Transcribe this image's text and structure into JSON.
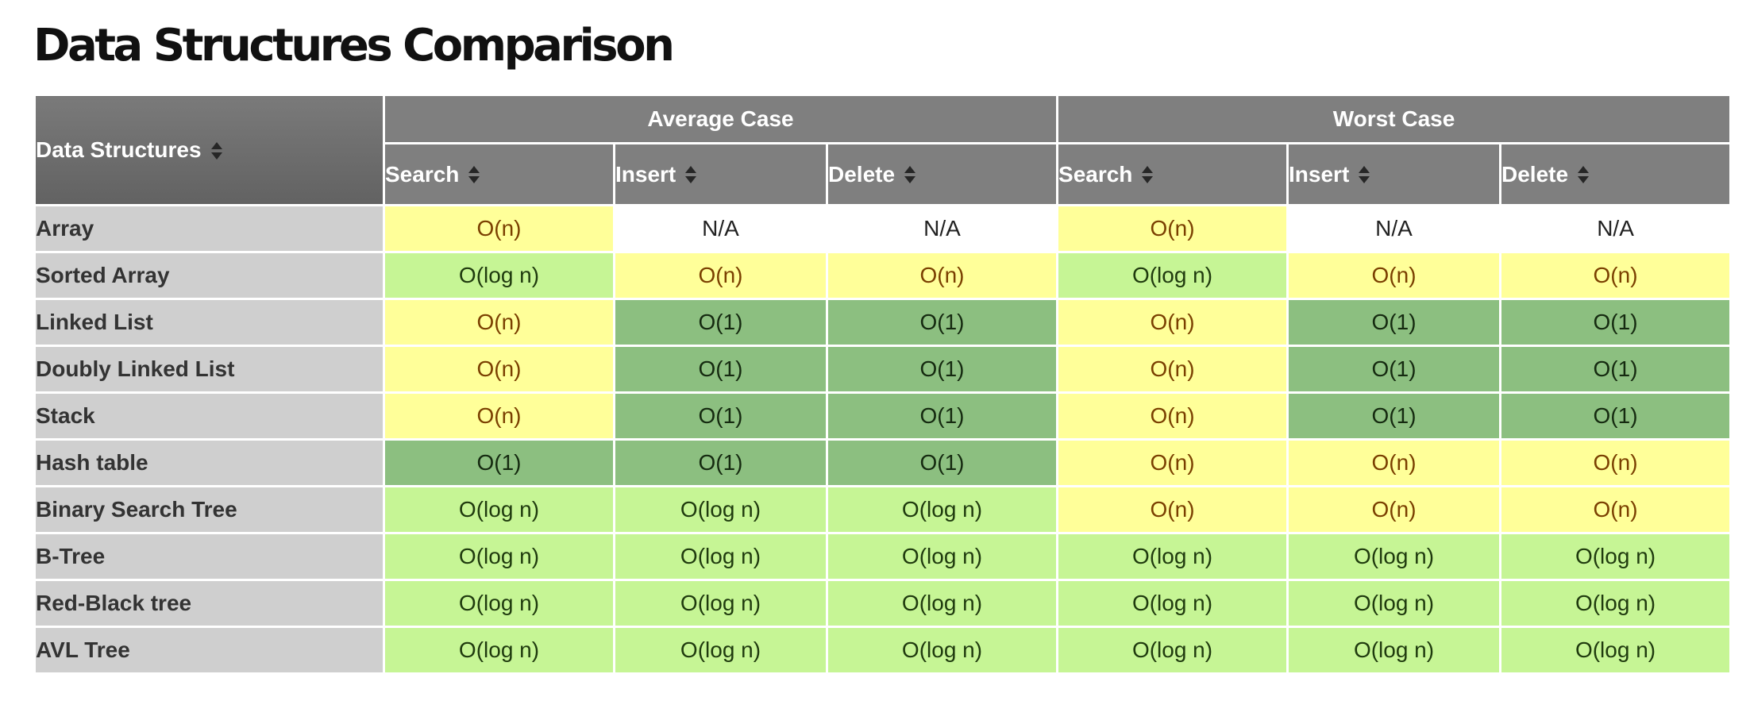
{
  "title": "Data Structures Comparison",
  "header": {
    "name_col": "Data Structures",
    "groups": [
      "Average Case",
      "Worst Case"
    ],
    "ops": [
      "Search",
      "Insert",
      "Delete",
      "Search",
      "Insert",
      "Delete"
    ]
  },
  "colors": {
    "O(1)": "#8cbf80",
    "O(log n)": "#c6f595",
    "O(n)": "#ffff99",
    "N/A": "#ffffff",
    "header": "#7f7f7f",
    "row_header": "#cfcfcf"
  },
  "rows": [
    {
      "name": "Array",
      "cells": [
        "O(n)",
        "N/A",
        "N/A",
        "O(n)",
        "N/A",
        "N/A"
      ]
    },
    {
      "name": "Sorted Array",
      "cells": [
        "O(log n)",
        "O(n)",
        "O(n)",
        "O(log n)",
        "O(n)",
        "O(n)"
      ]
    },
    {
      "name": "Linked List",
      "cells": [
        "O(n)",
        "O(1)",
        "O(1)",
        "O(n)",
        "O(1)",
        "O(1)"
      ]
    },
    {
      "name": "Doubly Linked List",
      "cells": [
        "O(n)",
        "O(1)",
        "O(1)",
        "O(n)",
        "O(1)",
        "O(1)"
      ]
    },
    {
      "name": "Stack",
      "cells": [
        "O(n)",
        "O(1)",
        "O(1)",
        "O(n)",
        "O(1)",
        "O(1)"
      ]
    },
    {
      "name": "Hash table",
      "cells": [
        "O(1)",
        "O(1)",
        "O(1)",
        "O(n)",
        "O(n)",
        "O(n)"
      ]
    },
    {
      "name": "Binary Search Tree",
      "cells": [
        "O(log n)",
        "O(log n)",
        "O(log n)",
        "O(n)",
        "O(n)",
        "O(n)"
      ]
    },
    {
      "name": "B-Tree",
      "cells": [
        "O(log n)",
        "O(log n)",
        "O(log n)",
        "O(log n)",
        "O(log n)",
        "O(log n)"
      ]
    },
    {
      "name": "Red-Black tree",
      "cells": [
        "O(log n)",
        "O(log n)",
        "O(log n)",
        "O(log n)",
        "O(log n)",
        "O(log n)"
      ]
    },
    {
      "name": "AVL Tree",
      "cells": [
        "O(log n)",
        "O(log n)",
        "O(log n)",
        "O(log n)",
        "O(log n)",
        "O(log n)"
      ]
    }
  ]
}
